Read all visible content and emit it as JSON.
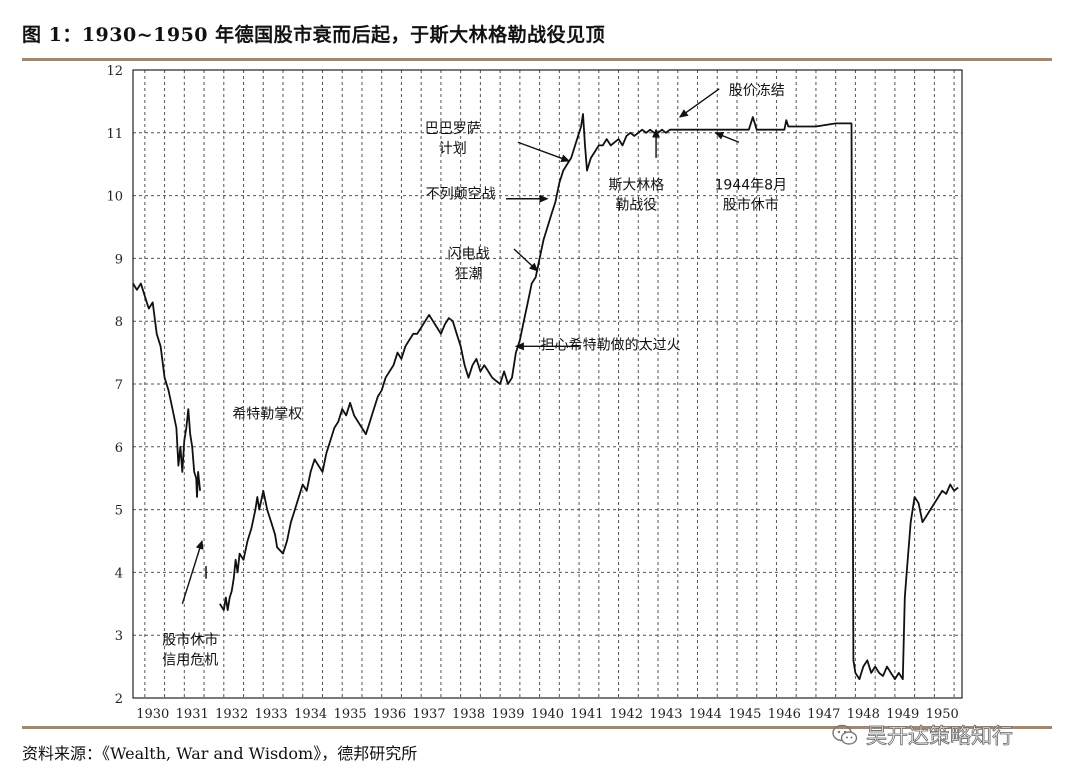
{
  "figure": {
    "title": "图 1：1930~1950 年德国股市衰而后起，于斯大林格勒战役见顶",
    "source": "资料来源：《Wealth, War and Wisdom》，德邦研究所",
    "watermark": "吴开达策略知行"
  },
  "chart_data": {
    "type": "line",
    "title": "",
    "xlabel": "",
    "ylabel": "",
    "xlim": [
      1929.7,
      1950.7
    ],
    "ylim": [
      2,
      12
    ],
    "grid": true,
    "yticks": [
      2,
      3,
      4,
      5,
      6,
      7,
      8,
      9,
      10,
      11,
      12
    ],
    "xticks": [
      {
        "x": 1930.2,
        "label": "1930"
      },
      {
        "x": 1931.2,
        "label": "1931"
      },
      {
        "x": 1932.2,
        "label": "1932"
      },
      {
        "x": 1933.2,
        "label": "1933"
      },
      {
        "x": 1934.2,
        "label": "1934"
      },
      {
        "x": 1935.2,
        "label": "1935"
      },
      {
        "x": 1936.2,
        "label": "1936"
      },
      {
        "x": 1937.2,
        "label": "1937"
      },
      {
        "x": 1938.2,
        "label": "1938"
      },
      {
        "x": 1939.2,
        "label": "1939"
      },
      {
        "x": 1940.2,
        "label": "1940"
      },
      {
        "x": 1941.2,
        "label": "1941"
      },
      {
        "x": 1942.2,
        "label": "1942"
      },
      {
        "x": 1943.2,
        "label": "1943"
      },
      {
        "x": 1944.2,
        "label": "1944"
      },
      {
        "x": 1945.2,
        "label": "1945"
      },
      {
        "x": 1946.2,
        "label": "1946"
      },
      {
        "x": 1947.2,
        "label": "1947"
      },
      {
        "x": 1948.2,
        "label": "1948"
      },
      {
        "x": 1949.2,
        "label": "1949"
      },
      {
        "x": 1950.2,
        "label": "1950"
      }
    ],
    "series": [
      {
        "segments": [
          [
            [
              1929.7,
              8.6
            ],
            [
              1929.8,
              8.5
            ],
            [
              1929.9,
              8.6
            ],
            [
              1930.0,
              8.4
            ],
            [
              1930.1,
              8.2
            ],
            [
              1930.2,
              8.3
            ],
            [
              1930.3,
              7.8
            ],
            [
              1930.4,
              7.6
            ],
            [
              1930.5,
              7.1
            ],
            [
              1930.6,
              6.9
            ],
            [
              1930.7,
              6.6
            ],
            [
              1930.8,
              6.3
            ],
            [
              1930.85,
              5.7
            ],
            [
              1930.9,
              6.0
            ],
            [
              1930.95,
              5.6
            ],
            [
              1931.0,
              6.1
            ],
            [
              1931.05,
              6.3
            ],
            [
              1931.1,
              6.6
            ],
            [
              1931.15,
              6.2
            ],
            [
              1931.2,
              6.0
            ],
            [
              1931.25,
              5.6
            ],
            [
              1931.3,
              5.5
            ],
            [
              1931.32,
              5.2
            ],
            [
              1931.35,
              5.6
            ],
            [
              1931.4,
              5.3
            ]
          ],
          [
            [
              1931.9,
              3.5
            ],
            [
              1932.0,
              3.4
            ],
            [
              1932.05,
              3.6
            ],
            [
              1932.1,
              3.4
            ],
            [
              1932.15,
              3.6
            ],
            [
              1932.2,
              3.7
            ],
            [
              1932.25,
              3.9
            ],
            [
              1932.3,
              4.2
            ],
            [
              1932.35,
              4.0
            ],
            [
              1932.4,
              4.3
            ],
            [
              1932.5,
              4.2
            ],
            [
              1932.6,
              4.5
            ],
            [
              1932.7,
              4.7
            ],
            [
              1932.8,
              5.0
            ],
            [
              1932.85,
              5.2
            ],
            [
              1932.9,
              5.0
            ],
            [
              1933.0,
              5.3
            ],
            [
              1933.1,
              5.0
            ],
            [
              1933.2,
              4.8
            ],
            [
              1933.3,
              4.6
            ],
            [
              1933.35,
              4.4
            ],
            [
              1933.5,
              4.3
            ],
            [
              1933.6,
              4.5
            ],
            [
              1933.7,
              4.8
            ],
            [
              1933.8,
              5.0
            ],
            [
              1933.9,
              5.2
            ],
            [
              1934.0,
              5.4
            ],
            [
              1934.1,
              5.3
            ],
            [
              1934.2,
              5.6
            ],
            [
              1934.3,
              5.8
            ],
            [
              1934.4,
              5.7
            ],
            [
              1934.5,
              5.6
            ],
            [
              1934.6,
              5.9
            ],
            [
              1934.7,
              6.1
            ],
            [
              1934.8,
              6.3
            ],
            [
              1934.9,
              6.4
            ],
            [
              1935.0,
              6.6
            ],
            [
              1935.1,
              6.5
            ],
            [
              1935.2,
              6.7
            ],
            [
              1935.3,
              6.5
            ],
            [
              1935.4,
              6.4
            ],
            [
              1935.5,
              6.3
            ],
            [
              1935.6,
              6.2
            ],
            [
              1935.7,
              6.4
            ],
            [
              1935.8,
              6.6
            ],
            [
              1935.9,
              6.8
            ],
            [
              1936.0,
              6.9
            ],
            [
              1936.1,
              7.1
            ],
            [
              1936.2,
              7.2
            ],
            [
              1936.3,
              7.3
            ],
            [
              1936.4,
              7.5
            ],
            [
              1936.5,
              7.4
            ],
            [
              1936.6,
              7.6
            ],
            [
              1936.7,
              7.7
            ],
            [
              1936.8,
              7.8
            ],
            [
              1936.9,
              7.8
            ],
            [
              1937.0,
              7.9
            ],
            [
              1937.1,
              8.0
            ],
            [
              1937.2,
              8.1
            ],
            [
              1937.3,
              8.0
            ],
            [
              1937.4,
              7.9
            ],
            [
              1937.5,
              7.8
            ],
            [
              1937.6,
              7.95
            ],
            [
              1937.7,
              8.05
            ],
            [
              1937.8,
              8.0
            ],
            [
              1937.9,
              7.8
            ],
            [
              1938.0,
              7.6
            ],
            [
              1938.1,
              7.3
            ],
            [
              1938.2,
              7.1
            ],
            [
              1938.3,
              7.3
            ],
            [
              1938.4,
              7.4
            ],
            [
              1938.5,
              7.2
            ],
            [
              1938.6,
              7.3
            ],
            [
              1938.7,
              7.2
            ],
            [
              1938.8,
              7.1
            ],
            [
              1938.9,
              7.05
            ],
            [
              1939.0,
              7.0
            ],
            [
              1939.1,
              7.2
            ],
            [
              1939.2,
              7.0
            ],
            [
              1939.3,
              7.1
            ],
            [
              1939.4,
              7.5
            ],
            [
              1939.5,
              7.7
            ],
            [
              1939.6,
              8.0
            ],
            [
              1939.7,
              8.3
            ],
            [
              1939.8,
              8.6
            ],
            [
              1939.9,
              8.7
            ],
            [
              1940.0,
              9.0
            ],
            [
              1940.1,
              9.3
            ],
            [
              1940.2,
              9.5
            ],
            [
              1940.3,
              9.7
            ],
            [
              1940.4,
              9.9
            ],
            [
              1940.5,
              10.2
            ],
            [
              1940.6,
              10.4
            ],
            [
              1940.7,
              10.5
            ],
            [
              1940.8,
              10.6
            ],
            [
              1940.9,
              10.8
            ],
            [
              1941.0,
              11.0
            ],
            [
              1941.05,
              11.1
            ],
            [
              1941.1,
              11.3
            ],
            [
              1941.15,
              10.8
            ],
            [
              1941.2,
              10.4
            ],
            [
              1941.3,
              10.6
            ],
            [
              1941.4,
              10.7
            ],
            [
              1941.5,
              10.8
            ],
            [
              1941.6,
              10.8
            ],
            [
              1941.7,
              10.9
            ],
            [
              1941.8,
              10.8
            ],
            [
              1942.0,
              10.9
            ],
            [
              1942.1,
              10.8
            ],
            [
              1942.2,
              10.95
            ],
            [
              1942.3,
              11.0
            ],
            [
              1942.4,
              10.95
            ],
            [
              1942.5,
              11.0
            ],
            [
              1942.6,
              11.05
            ],
            [
              1942.7,
              11.0
            ],
            [
              1942.8,
              11.05
            ],
            [
              1942.9,
              11.0
            ],
            [
              1943.0,
              11.0
            ],
            [
              1943.1,
              11.05
            ],
            [
              1943.2,
              11.0
            ],
            [
              1943.3,
              11.05
            ],
            [
              1943.4,
              11.05
            ],
            [
              1943.5,
              11.05
            ],
            [
              1944.0,
              11.05
            ],
            [
              1944.5,
              11.05
            ],
            [
              1945.0,
              11.05
            ],
            [
              1945.3,
              11.05
            ],
            [
              1945.4,
              11.25
            ],
            [
              1945.45,
              11.15
            ],
            [
              1945.5,
              11.05
            ],
            [
              1945.8,
              11.05
            ],
            [
              1946.0,
              11.05
            ],
            [
              1946.2,
              11.05
            ],
            [
              1946.25,
              11.2
            ],
            [
              1946.3,
              11.1
            ],
            [
              1946.5,
              11.1
            ],
            [
              1947.0,
              11.1
            ],
            [
              1947.5,
              11.15
            ],
            [
              1947.9,
              11.15
            ],
            [
              1947.95,
              2.6
            ],
            [
              1948.0,
              2.4
            ],
            [
              1948.1,
              2.3
            ],
            [
              1948.2,
              2.5
            ],
            [
              1948.3,
              2.6
            ],
            [
              1948.4,
              2.4
            ],
            [
              1948.5,
              2.5
            ],
            [
              1948.6,
              2.4
            ],
            [
              1948.7,
              2.35
            ],
            [
              1948.8,
              2.5
            ],
            [
              1948.9,
              2.4
            ],
            [
              1949.0,
              2.3
            ],
            [
              1949.1,
              2.4
            ],
            [
              1949.2,
              2.3
            ],
            [
              1949.25,
              3.6
            ],
            [
              1949.3,
              4.0
            ],
            [
              1949.4,
              4.8
            ],
            [
              1949.5,
              5.2
            ],
            [
              1949.6,
              5.1
            ],
            [
              1949.7,
              4.8
            ],
            [
              1949.8,
              4.9
            ],
            [
              1949.9,
              5.0
            ],
            [
              1950.0,
              5.1
            ],
            [
              1950.1,
              5.2
            ],
            [
              1950.2,
              5.3
            ],
            [
              1950.3,
              5.25
            ],
            [
              1950.4,
              5.4
            ],
            [
              1950.5,
              5.3
            ],
            [
              1950.6,
              5.35
            ]
          ]
        ]
      }
    ],
    "closed_mark": {
      "x": 1931.55,
      "y_from": 3.9,
      "y_to": 4.1
    },
    "annotations": [
      {
        "id": "shutdown",
        "lines": [
          "股市休市",
          "信用危机"
        ],
        "x": 1931.15,
        "y": 2.85,
        "arrow": {
          "from": [
            1930.95,
            3.5
          ],
          "to": [
            1931.45,
            4.5
          ]
        }
      },
      {
        "id": "hitler",
        "lines": [
          "希特勒掌权"
        ],
        "x": 1933.1,
        "y": 6.45
      },
      {
        "id": "blitz",
        "lines": [
          "闪电战",
          "狂潮"
        ],
        "x": 1938.2,
        "y": 9.0,
        "arrow": {
          "from": [
            1939.35,
            9.15
          ],
          "to": [
            1939.95,
            8.8
          ]
        }
      },
      {
        "id": "battle_britain",
        "lines": [
          "不列颠空战"
        ],
        "x": 1938.0,
        "y": 9.95,
        "arrow": {
          "from": [
            1939.15,
            9.95
          ],
          "to": [
            1940.2,
            9.95
          ]
        }
      },
      {
        "id": "barbarossa",
        "lines": [
          "巴巴罗萨",
          "计划"
        ],
        "x": 1937.8,
        "y": 11.0,
        "arrow": {
          "from": [
            1939.45,
            10.85
          ],
          "to": [
            1940.75,
            10.55
          ]
        }
      },
      {
        "id": "hitler_worry",
        "lines": [
          "担心希特勒做的太过火"
        ],
        "x": 1941.8,
        "y": 7.55,
        "arrow": {
          "from": [
            1941.0,
            7.6
          ],
          "to": [
            1939.4,
            7.6
          ]
        }
      },
      {
        "id": "stalingrad",
        "lines": [
          "斯大林格",
          "勒战役"
        ],
        "x": 1942.45,
        "y": 10.1,
        "arrow": {
          "from": [
            1942.95,
            10.6
          ],
          "to": [
            1942.95,
            11.05
          ]
        }
      },
      {
        "id": "price_freeze",
        "lines": [
          "股价冻结"
        ],
        "x": 1945.5,
        "y": 11.6,
        "arrow": {
          "from": [
            1944.55,
            11.7
          ],
          "to": [
            1943.55,
            11.25
          ]
        }
      },
      {
        "id": "closure_1944",
        "lines": [
          "1944年8月",
          "股市休市"
        ],
        "x": 1945.35,
        "y": 10.1,
        "arrow": {
          "from": [
            1945.05,
            10.85
          ],
          "to": [
            1944.45,
            11.0
          ]
        }
      }
    ]
  }
}
